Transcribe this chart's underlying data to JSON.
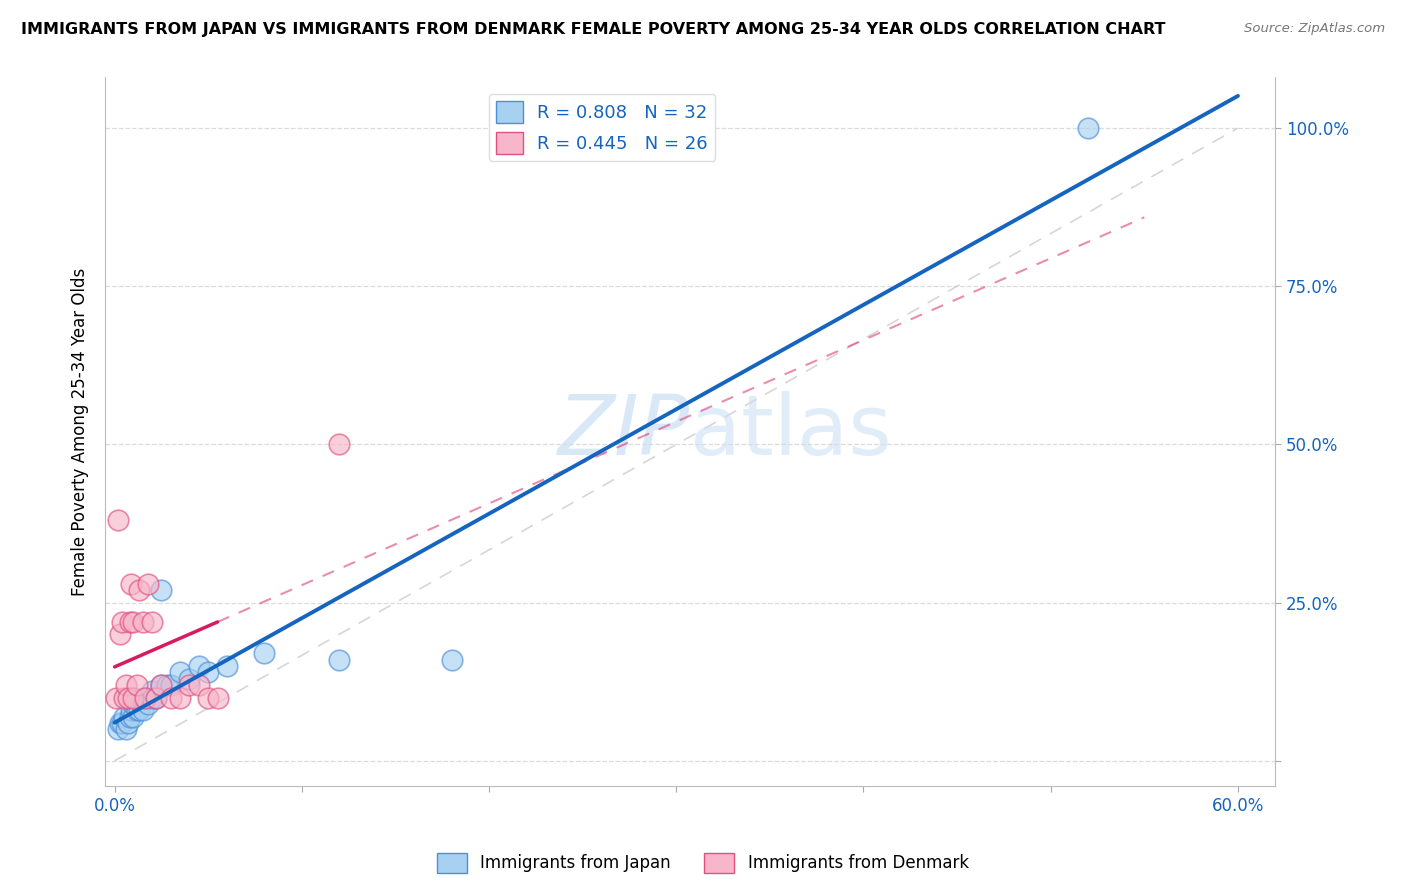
{
  "title": "IMMIGRANTS FROM JAPAN VS IMMIGRANTS FROM DENMARK FEMALE POVERTY AMONG 25-34 YEAR OLDS CORRELATION CHART",
  "source": "Source: ZipAtlas.com",
  "ylabel": "Female Poverty Among 25-34 Year Olds",
  "xlim": [
    -0.005,
    0.62
  ],
  "ylim": [
    -0.04,
    1.08
  ],
  "x_ticks": [
    0.0,
    0.1,
    0.2,
    0.3,
    0.4,
    0.5,
    0.6
  ],
  "x_tick_labels": [
    "0.0%",
    "",
    "",
    "",
    "",
    "",
    "60.0%"
  ],
  "y_ticks": [
    0.0,
    0.25,
    0.5,
    0.75,
    1.0
  ],
  "y_tick_labels_right": [
    "",
    "25.0%",
    "50.0%",
    "75.0%",
    "100.0%"
  ],
  "japan_color": "#a8d0f0",
  "denmark_color": "#f7b6ca",
  "japan_edge_color": "#4a90d9",
  "denmark_edge_color": "#e05080",
  "japan_R": 0.808,
  "japan_N": 32,
  "denmark_R": 0.445,
  "denmark_N": 26,
  "japan_x": [
    0.002,
    0.003,
    0.004,
    0.005,
    0.006,
    0.007,
    0.008,
    0.009,
    0.01,
    0.01,
    0.012,
    0.013,
    0.015,
    0.015,
    0.016,
    0.018,
    0.02,
    0.02,
    0.022,
    0.025,
    0.025,
    0.028,
    0.03,
    0.035,
    0.04,
    0.045,
    0.05,
    0.06,
    0.08,
    0.12,
    0.18,
    0.52
  ],
  "japan_y": [
    0.05,
    0.06,
    0.06,
    0.07,
    0.05,
    0.06,
    0.07,
    0.08,
    0.07,
    0.09,
    0.08,
    0.08,
    0.08,
    0.1,
    0.1,
    0.09,
    0.1,
    0.11,
    0.1,
    0.12,
    0.27,
    0.12,
    0.12,
    0.14,
    0.13,
    0.15,
    0.14,
    0.15,
    0.17,
    0.16,
    0.16,
    1.0
  ],
  "denmark_x": [
    0.001,
    0.002,
    0.003,
    0.004,
    0.005,
    0.006,
    0.007,
    0.008,
    0.009,
    0.01,
    0.01,
    0.012,
    0.013,
    0.015,
    0.016,
    0.018,
    0.02,
    0.022,
    0.025,
    0.03,
    0.035,
    0.04,
    0.045,
    0.05,
    0.055,
    0.12
  ],
  "denmark_y": [
    0.1,
    0.38,
    0.2,
    0.22,
    0.1,
    0.12,
    0.1,
    0.22,
    0.28,
    0.1,
    0.22,
    0.12,
    0.27,
    0.22,
    0.1,
    0.28,
    0.22,
    0.1,
    0.12,
    0.1,
    0.1,
    0.12,
    0.12,
    0.1,
    0.1,
    0.5
  ],
  "japan_line_color": "#1565C0",
  "denmark_line_color": "#d81b60",
  "ref_line_color": "#cccccc",
  "grid_color": "#d8d8d8",
  "background_color": "#ffffff",
  "watermark_color": "#c8dff5",
  "legend_box_color": "#e8f4ff",
  "legend_text_color": "#1565C0"
}
